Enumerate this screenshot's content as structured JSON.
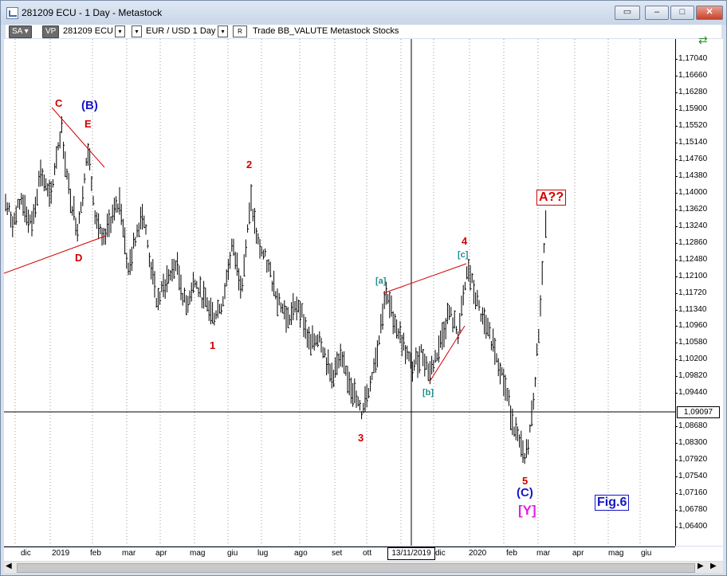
{
  "window": {
    "title": "281209 ECU - 1 Day - Metastock"
  },
  "toolbar": {
    "sa": "SA",
    "vp": "VP",
    "symbol": "281209 ECU",
    "pair_period": "EUR / USD  1 Day",
    "r_box": "R",
    "extra": "Trade  BB_VALUTE  Metastock  Stocks"
  },
  "price_axis": {
    "labels": [
      "1,17040",
      "1,16660",
      "1,16280",
      "1,15900",
      "1,15520",
      "1,15140",
      "1,14760",
      "1,14380",
      "1,14000",
      "1,13620",
      "1,13240",
      "1,12860",
      "1,12480",
      "1,12100",
      "1,11720",
      "1,11340",
      "1,10960",
      "1,10580",
      "1,10200",
      "1,09820",
      "1,09440",
      "1,08680",
      "1,08300",
      "1,07920",
      "1,07540",
      "1,07160",
      "1,06780",
      "1,06400"
    ],
    "cursor_value": "1,09097"
  },
  "date_axis": {
    "labels": [
      "dic",
      "2019",
      "feb",
      "mar",
      "apr",
      "mag",
      "giu",
      "lug",
      "ago",
      "set",
      "ott",
      "dic",
      "2020",
      "feb",
      "mar",
      "apr",
      "mag",
      "giu"
    ],
    "cursor_date": "13/11/2019"
  },
  "wave_labels": {
    "C": "C",
    "B": "(B)",
    "E": "E",
    "D": "D",
    "w2": "2",
    "w1": "1",
    "w3": "3",
    "w4": "4",
    "w5": "5",
    "a": "[a]",
    "b": "[b]",
    "c": "[c]",
    "A": "A??",
    "C_paren": "(C)",
    "Y": "[Y]",
    "fig": "Fig.6"
  },
  "colors": {
    "wave_red": "#d00000",
    "wave_blue": "#1515c8",
    "wave_teal": "#1f8f8f",
    "wave_magenta": "#e020e0",
    "bars": "#000000"
  }
}
